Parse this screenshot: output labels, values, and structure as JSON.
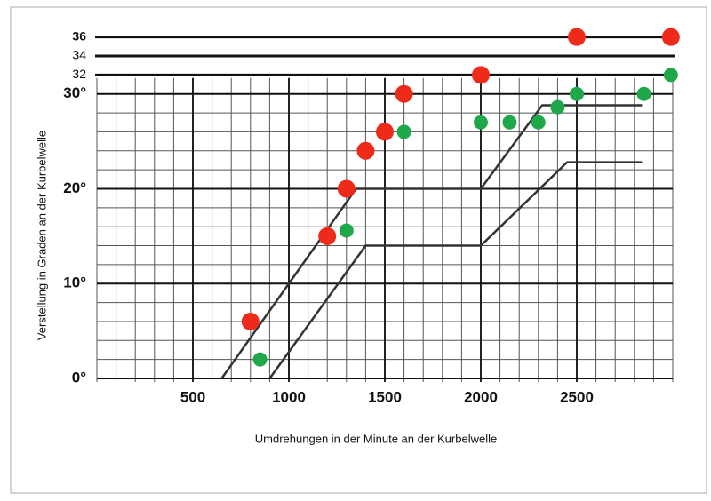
{
  "chart_data": {
    "type": "scatter",
    "y_label": "Verstellung in Graden an der Kurbelwelle",
    "x_label": "Umdrehungen in der Minute an der Kurbelwelle",
    "xlim": [
      0,
      3000
    ],
    "ylim": [
      0,
      37
    ],
    "xticks": [
      500,
      1000,
      1500,
      2000,
      2500
    ],
    "yticks": [
      {
        "value": 0,
        "label": "0°"
      },
      {
        "value": 10,
        "label": "10°"
      },
      {
        "value": 20,
        "label": "20°"
      },
      {
        "value": 30,
        "label": "30°"
      },
      32,
      34,
      36
    ],
    "grid": true,
    "series": [
      {
        "color": "#ee2a1b",
        "x": [
          800,
          1200,
          1300,
          1400,
          1500,
          1600,
          2000,
          2500,
          2990
        ],
        "values": [
          6,
          15,
          20,
          24,
          26,
          30,
          32,
          36,
          36
        ]
      },
      {
        "color": "#1fa84a",
        "x": [
          850,
          1300,
          1600,
          2000,
          2150,
          2300,
          2400,
          2500,
          2850,
          2990
        ],
        "values": [
          2,
          15.6,
          26,
          27,
          27,
          27,
          28.6,
          30,
          30,
          32
        ]
      }
    ],
    "envelopes": [
      {
        "color": "#333333",
        "x": [
          650,
          1350,
          2000,
          2320,
          2840
        ],
        "values": [
          0,
          20,
          20,
          28.8,
          28.8
        ]
      },
      {
        "color": "#333333",
        "x": [
          900,
          1400,
          2000,
          2450,
          2840
        ],
        "values": [
          0,
          14,
          14,
          22.8,
          22.8
        ]
      }
    ]
  }
}
